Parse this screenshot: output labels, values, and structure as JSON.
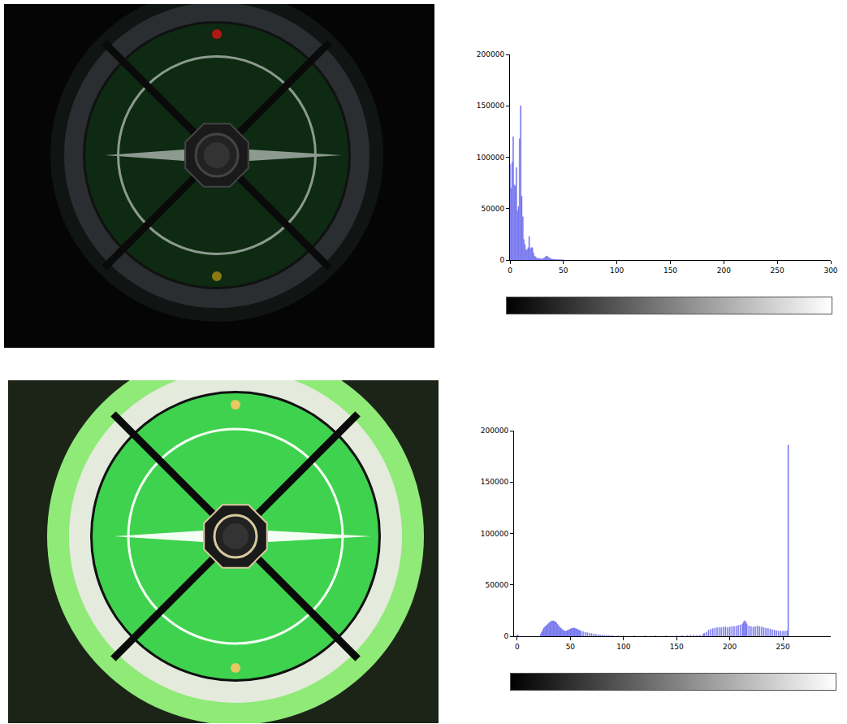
{
  "chart_data": [
    {
      "type": "bar",
      "color": "#7474ee",
      "grid": false,
      "xlim": [
        0,
        300
      ],
      "xticks": [
        0,
        50,
        100,
        150,
        200,
        250,
        300
      ],
      "ylim": [
        0,
        200000
      ],
      "yticks": [
        0,
        50000,
        100000,
        150000,
        200000
      ],
      "x": [
        0,
        1,
        2,
        3,
        4,
        5,
        6,
        7,
        8,
        9,
        10,
        11,
        12,
        13,
        14,
        15,
        16,
        17,
        18,
        19,
        20,
        21,
        22,
        23,
        24,
        25,
        26,
        27,
        28,
        29,
        30,
        31,
        32,
        33,
        34,
        35,
        36,
        37,
        38,
        39,
        40,
        41,
        42,
        43,
        44,
        45,
        46,
        47,
        48,
        49,
        50
      ],
      "values": [
        93000,
        70000,
        95000,
        120000,
        73000,
        72000,
        90000,
        48000,
        52000,
        118000,
        150000,
        62000,
        42000,
        20000,
        15000,
        10000,
        10000,
        12000,
        23000,
        11000,
        12000,
        12000,
        7000,
        4000,
        3000,
        2000,
        1500,
        1500,
        1500,
        1000,
        1000,
        1500,
        2000,
        3000,
        4000,
        3500,
        2500,
        2000,
        1500,
        1000,
        800,
        600,
        500,
        400,
        300,
        300,
        250,
        200,
        150,
        100,
        100
      ]
    },
    {
      "type": "bar",
      "color": "#7474ee",
      "grid": false,
      "xlim": [
        -3,
        295
      ],
      "xticks": [
        0,
        50,
        100,
        150,
        200,
        250
      ],
      "ylim": [
        0,
        200000
      ],
      "yticks": [
        0,
        50000,
        100000,
        150000,
        200000
      ],
      "x": [
        0,
        1,
        22,
        23,
        24,
        25,
        26,
        27,
        28,
        29,
        30,
        31,
        32,
        33,
        34,
        35,
        36,
        37,
        38,
        39,
        40,
        41,
        42,
        43,
        44,
        45,
        46,
        47,
        48,
        49,
        50,
        51,
        52,
        53,
        54,
        55,
        56,
        57,
        58,
        59,
        60,
        62,
        64,
        66,
        68,
        70,
        72,
        74,
        76,
        78,
        80,
        82,
        84,
        86,
        88,
        90,
        95,
        100,
        110,
        120,
        130,
        140,
        150,
        155,
        160,
        163,
        166,
        169,
        172,
        175,
        176,
        178,
        180,
        182,
        184,
        186,
        188,
        190,
        192,
        194,
        196,
        198,
        200,
        202,
        204,
        206,
        208,
        210,
        212,
        213,
        214,
        215,
        216,
        218,
        220,
        222,
        224,
        226,
        228,
        230,
        232,
        234,
        236,
        238,
        240,
        242,
        244,
        246,
        248,
        250,
        252,
        254,
        255
      ],
      "values": [
        1500,
        800,
        2000,
        4000,
        6000,
        8000,
        9000,
        10000,
        11000,
        12000,
        13000,
        14000,
        14500,
        15000,
        15000,
        14500,
        14000,
        13000,
        11500,
        10000,
        9000,
        8000,
        7000,
        6000,
        5500,
        5000,
        5000,
        5500,
        6000,
        6500,
        7000,
        7500,
        8000,
        8000,
        8000,
        7500,
        7000,
        6500,
        6000,
        5500,
        5000,
        4500,
        4000,
        3500,
        3000,
        2600,
        2200,
        1900,
        1600,
        1300,
        1100,
        900,
        800,
        700,
        600,
        500,
        400,
        300,
        300,
        300,
        300,
        400,
        500,
        600,
        800,
        1000,
        900,
        800,
        1000,
        2000,
        3000,
        4000,
        6000,
        7000,
        7500,
        8000,
        8500,
        8500,
        8500,
        9000,
        9000,
        8500,
        9000,
        9500,
        9500,
        10000,
        10500,
        11000,
        12000,
        14000,
        15000,
        14000,
        12000,
        10000,
        9500,
        9000,
        9500,
        10000,
        9500,
        9000,
        8500,
        8000,
        7500,
        7000,
        6500,
        6000,
        5500,
        5000,
        5000,
        5000,
        5000,
        5500,
        186000
      ]
    }
  ]
}
